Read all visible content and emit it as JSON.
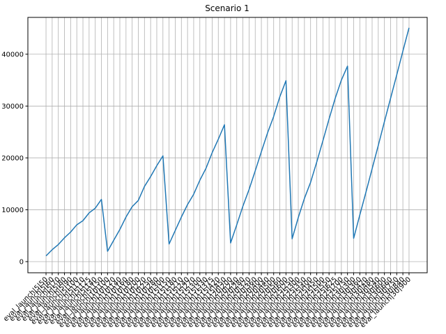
{
  "chart_data": {
    "type": "line",
    "title": "Scenario 1",
    "categories": [
      "eval_launch|5|50",
      "eval_launch|5|60",
      "eval_launch|5|70",
      "eval_launch|5|80",
      "eval_launch|5|90",
      "eval_launch|5|100",
      "eval_launch|5|110",
      "eval_launch|5|125",
      "eval_launch|5|140",
      "eval_launch|5|150",
      "eval_launch|10|100",
      "eval_launch|10|120",
      "eval_launch|10|140",
      "eval_launch|10|160",
      "eval_launch|10|180",
      "eval_launch|10|200",
      "eval_launch|10|220",
      "eval_launch|10|250",
      "eval_launch|10|280",
      "eval_launch|10|300",
      "eval_launch|15|150",
      "eval_launch|15|180",
      "eval_launch|15|210",
      "eval_launch|15|240",
      "eval_launch|15|270",
      "eval_launch|15|300",
      "eval_launch|15|330",
      "eval_launch|15|375",
      "eval_launch|15|420",
      "eval_launch|15|450",
      "eval_launch|20|200",
      "eval_launch|20|240",
      "eval_launch|20|280",
      "eval_launch|20|320",
      "eval_launch|20|360",
      "eval_launch|20|400",
      "eval_launch|20|440",
      "eval_launch|20|500",
      "eval_launch|20|560",
      "eval_launch|20|600",
      "eval_launch|25|250",
      "eval_launch|25|300",
      "eval_launch|25|350",
      "eval_launch|25|400",
      "eval_launch|25|450",
      "eval_launch|25|500",
      "eval_launch|25|550",
      "eval_launch|25|625",
      "eval_launch|25|700",
      "eval_launch|25|750",
      "eval_launch|30|300",
      "eval_launch|30|360",
      "eval_launch|30|420",
      "eval_launch|30|480",
      "eval_launch|30|540",
      "eval_launch|30|600",
      "eval_launch|30|660",
      "eval_launch|30|750",
      "eval_launch|30|840",
      "eval_launch|30|900"
    ],
    "values": [
      1100,
      2300,
      3300,
      4600,
      5700,
      7100,
      7900,
      9400,
      10300,
      12000,
      2000,
      4100,
      6200,
      8600,
      10600,
      11800,
      14500,
      16400,
      18500,
      20400,
      3400,
      6000,
      8600,
      11000,
      13000,
      15700,
      18000,
      21000,
      23600,
      26400,
      3600,
      7100,
      10700,
      13900,
      17500,
      21200,
      24800,
      28000,
      31800,
      34900,
      4400,
      8500,
      12200,
      15300,
      19200,
      23300,
      27500,
      31500,
      35000,
      37700,
      4500,
      9000,
      13400,
      17900,
      22400,
      27000,
      31500,
      36000,
      40600,
      45100
    ],
    "color": "#1f77b4",
    "ylim": [
      -2150,
      47100
    ],
    "yticks": [
      0,
      10000,
      20000,
      30000,
      40000
    ],
    "grid": true
  }
}
